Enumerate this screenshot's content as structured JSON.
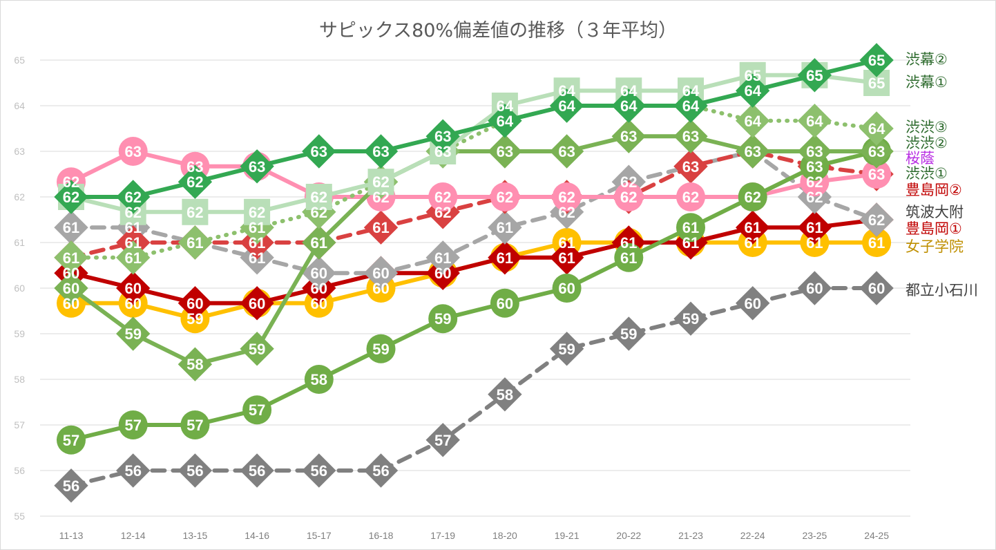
{
  "chart_data": {
    "type": "line",
    "title": "サピックス80%偏差値の推移（３年平均）",
    "categories": [
      "11-13",
      "12-14",
      "13-15",
      "14-16",
      "15-17",
      "16-18",
      "17-19",
      "18-20",
      "19-21",
      "20-22",
      "21-23",
      "22-24",
      "23-25",
      "24-25"
    ],
    "ylim": [
      55,
      65
    ],
    "yticks": [
      55,
      56,
      57,
      58,
      59,
      60,
      61,
      62,
      63,
      64,
      65
    ],
    "grid": true,
    "legend": "right",
    "series": [
      {
        "name": "渋幕②",
        "color": "#33a852",
        "legend_color": "#2e6b2e",
        "style": "solid",
        "marker": "diamond",
        "values": [
          62,
          62,
          62.33,
          62.67,
          63,
          63,
          63.33,
          63.67,
          64,
          64,
          64,
          64.33,
          64.67,
          65
        ],
        "labels": [
          "62",
          "62",
          "62",
          "",
          "63",
          "63",
          "63",
          "64",
          "64",
          "64",
          "64",
          "64",
          "65",
          "65"
        ]
      },
      {
        "name": "渋幕①",
        "color": "#b9dfb8",
        "legend_color": "#2e6b2e",
        "style": "solid",
        "marker": "square",
        "values": [
          62,
          61.67,
          61.67,
          61.67,
          62,
          62.33,
          63,
          64,
          64.33,
          64.33,
          64.33,
          64.67,
          64.67,
          64.5
        ],
        "labels": [
          "",
          "62",
          "62",
          "62",
          "62",
          "62",
          "63",
          "64",
          "64",
          "64",
          "64",
          "65",
          "65",
          "65"
        ]
      },
      {
        "name": "渋渋③",
        "color": "#8dc06d",
        "legend_color": "#2e6b2e",
        "style": "dotted",
        "marker": "diamond",
        "values": [
          60.67,
          60.67,
          61,
          61.33,
          61.67,
          62.33,
          63,
          63.67,
          64,
          64,
          64,
          63.67,
          63.67,
          63.5
        ],
        "labels": [
          "",
          "61",
          "",
          "61",
          "62",
          "",
          "",
          "",
          "",
          "",
          "",
          "64",
          "64",
          "64"
        ]
      },
      {
        "name": "渋渋②",
        "color": "#7ab254",
        "legend_color": "#2e6b2e",
        "style": "solid",
        "marker": "diamond",
        "values": [
          60,
          59,
          58.33,
          58.67,
          61,
          62.33,
          63,
          63,
          63,
          63.33,
          63.33,
          63,
          63,
          63
        ],
        "labels": [
          "60",
          "59",
          "58",
          "59",
          "61",
          "62",
          "63",
          "63",
          "63",
          "63",
          "63",
          "",
          "63",
          "63"
        ]
      },
      {
        "name": "渋渋①",
        "color": "#70ad47",
        "legend_color": "#2e6b2e",
        "style": "solid",
        "marker": "circle",
        "values": [
          56.67,
          57,
          57,
          57.33,
          58,
          58.67,
          59.33,
          59.67,
          60,
          60.67,
          61.33,
          62,
          62.67,
          63
        ],
        "labels": [
          "57",
          "57",
          "57",
          "57",
          "58",
          "59",
          "59",
          "60",
          "60",
          "61",
          "61",
          "",
          "",
          ""
        ]
      },
      {
        "name": "桜蔭",
        "color": "#ff8fb1",
        "legend_color": "#b92fe3",
        "style": "solid",
        "marker": "circle",
        "values": [
          62.33,
          63,
          62.67,
          62.67,
          62,
          62,
          62,
          62,
          62,
          62,
          62,
          62,
          62.33,
          62.5
        ],
        "labels": [
          "62",
          "63",
          "63",
          "63",
          "62",
          "62",
          "62",
          "62",
          "62",
          "62",
          "62",
          "62",
          "62",
          "63"
        ]
      },
      {
        "name": "豊島岡②",
        "color": "#d94141",
        "legend_color": "#c00000",
        "style": "dashed",
        "marker": "diamond",
        "values": [
          60.67,
          61,
          61,
          61,
          61,
          61.33,
          61.67,
          62,
          62,
          62,
          62.67,
          63,
          62.67,
          62.5
        ],
        "labels": [
          "61",
          "61",
          "61",
          "61",
          "61",
          "61",
          "62",
          "",
          "62",
          "62",
          "",
          "",
          "63",
          ""
        ]
      },
      {
        "name": "筑波大附",
        "color": "#a6a6a6",
        "legend_color": "#404040",
        "style": "dashed",
        "marker": "diamond",
        "values": [
          61.33,
          61.33,
          61,
          60.67,
          60.33,
          60.33,
          60.67,
          61.33,
          61.67,
          62.33,
          62.67,
          63,
          62,
          61.5
        ],
        "labels": [
          "61",
          "61",
          "61",
          "61",
          "60",
          "",
          "61",
          "61",
          "62",
          "62",
          "63",
          "63",
          "62",
          ""
        ]
      },
      {
        "name": "豊島岡①",
        "color": "#c00000",
        "legend_color": "#c00000",
        "style": "solid",
        "marker": "diamond",
        "values": [
          60.33,
          60,
          59.67,
          59.67,
          60,
          60.33,
          60.33,
          60.67,
          60.67,
          61,
          61,
          61.33,
          61.33,
          61.5
        ],
        "labels": [
          "60",
          "60",
          "60",
          "",
          "60",
          "60",
          "",
          "",
          "61",
          "",
          "",
          "61",
          "61",
          "62"
        ]
      },
      {
        "name": "女子学院",
        "color": "#ffc000",
        "legend_color": "#bf8f00",
        "style": "solid",
        "marker": "circle",
        "values": [
          59.67,
          59.67,
          59.33,
          59.67,
          59.67,
          60,
          60.33,
          60.67,
          61,
          61,
          61,
          61,
          61,
          61
        ],
        "labels": [
          "60",
          "60",
          "59",
          "60",
          "60",
          "60",
          "60",
          "61",
          "61",
          "61",
          "61",
          "61",
          "61",
          "61"
        ]
      },
      {
        "name": "都立小石川",
        "color": "#808080",
        "legend_color": "#404040",
        "style": "dashed",
        "marker": "diamond",
        "values": [
          55.67,
          56,
          56,
          56,
          56,
          56,
          56.67,
          57.67,
          58.67,
          59,
          59.33,
          59.67,
          60,
          60
        ],
        "labels": [
          "56",
          "56",
          "56",
          "56",
          "56",
          "56",
          "57",
          "58",
          "59",
          "59",
          "59",
          "60",
          "60",
          "60"
        ]
      }
    ]
  }
}
